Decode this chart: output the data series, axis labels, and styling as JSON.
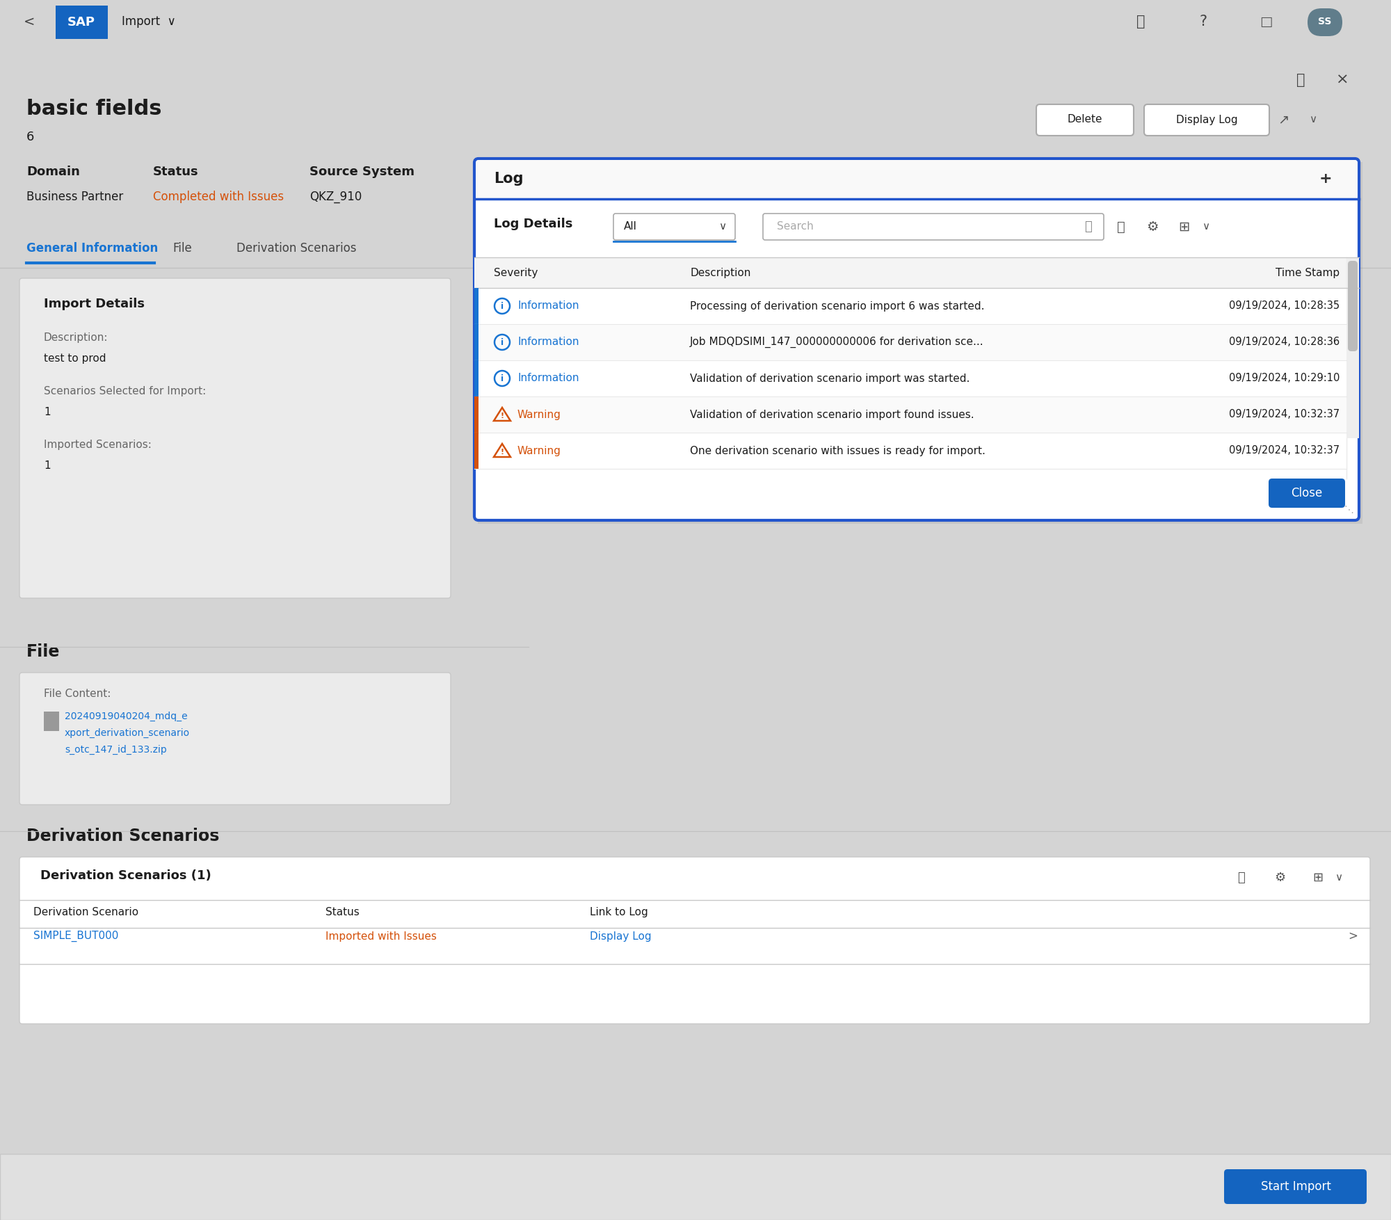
{
  "bg_color": "#d4d4d4",
  "white": "#ffffff",
  "blue_sap": "#1874d2",
  "blue_sap_dark": "#1464c0",
  "orange_warning": "#d4510a",
  "dark_text": "#1c1c1c",
  "gray_text": "#666666",
  "light_gray_card": "#ebebeb",
  "mid_gray": "#c8c8c8",
  "tab_line_color": "#d0d0d0",
  "dialog_border": "#2255cc",
  "title": "basic fields",
  "subtitle": "6",
  "domain_label": "Domain",
  "domain_value": "Business Partner",
  "status_label": "Status",
  "status_value": "Completed with Issues",
  "source_label": "Source System",
  "source_value": "QKZ_910",
  "tabs": [
    "General Information",
    "File",
    "Derivation Scenarios"
  ],
  "import_details_title": "Import Details",
  "desc_label": "Description:",
  "desc_value": "test to prod",
  "scenarios_selected_label": "Scenarios Selected for Import:",
  "scenarios_selected_value": "1",
  "imported_scenarios_label": "Imported Scenarios:",
  "imported_scenarios_value": "1",
  "file_section_title": "File",
  "file_content_label": "File Content:",
  "file_line1": "20240919040204_mdq_e",
  "file_line2": "xport_derivation_scenario",
  "file_line3": "s_otc_147_id_133.zip",
  "derivation_section_title": "Derivation Scenarios",
  "derivation_table_title": "Derivation Scenarios (1)",
  "col_headers": [
    "Derivation Scenario",
    "Status",
    "Link to Log"
  ],
  "derivation_row": [
    "SIMPLE_BUT000",
    "Imported with Issues",
    "Display Log"
  ],
  "log_dialog_title": "Log",
  "log_details_label": "Log Details",
  "log_filter": "All",
  "log_col_headers": [
    "Severity",
    "Description",
    "Time Stamp"
  ],
  "log_rows": [
    {
      "type": "Information",
      "desc": "Processing of derivation scenario import 6 was started.",
      "time": "09/19/2024, 10:28:35"
    },
    {
      "type": "Information",
      "desc": "Job MDQDSIMI_147_000000000006 for derivation sce...",
      "time": "09/19/2024, 10:28:36"
    },
    {
      "type": "Information",
      "desc": "Validation of derivation scenario import was started.",
      "time": "09/19/2024, 10:29:10"
    },
    {
      "type": "Warning",
      "desc": "Validation of derivation scenario import found issues.",
      "time": "09/19/2024, 10:32:37"
    },
    {
      "type": "Warning",
      "desc": "One derivation scenario with issues is ready for import.",
      "time": "09/19/2024, 10:32:37"
    }
  ],
  "close_btn": "Close",
  "start_import_btn": "Start Import",
  "delete_btn": "Delete",
  "display_log_btn": "Display Log",
  "search_placeholder": "Search",
  "nav_import": "Import"
}
